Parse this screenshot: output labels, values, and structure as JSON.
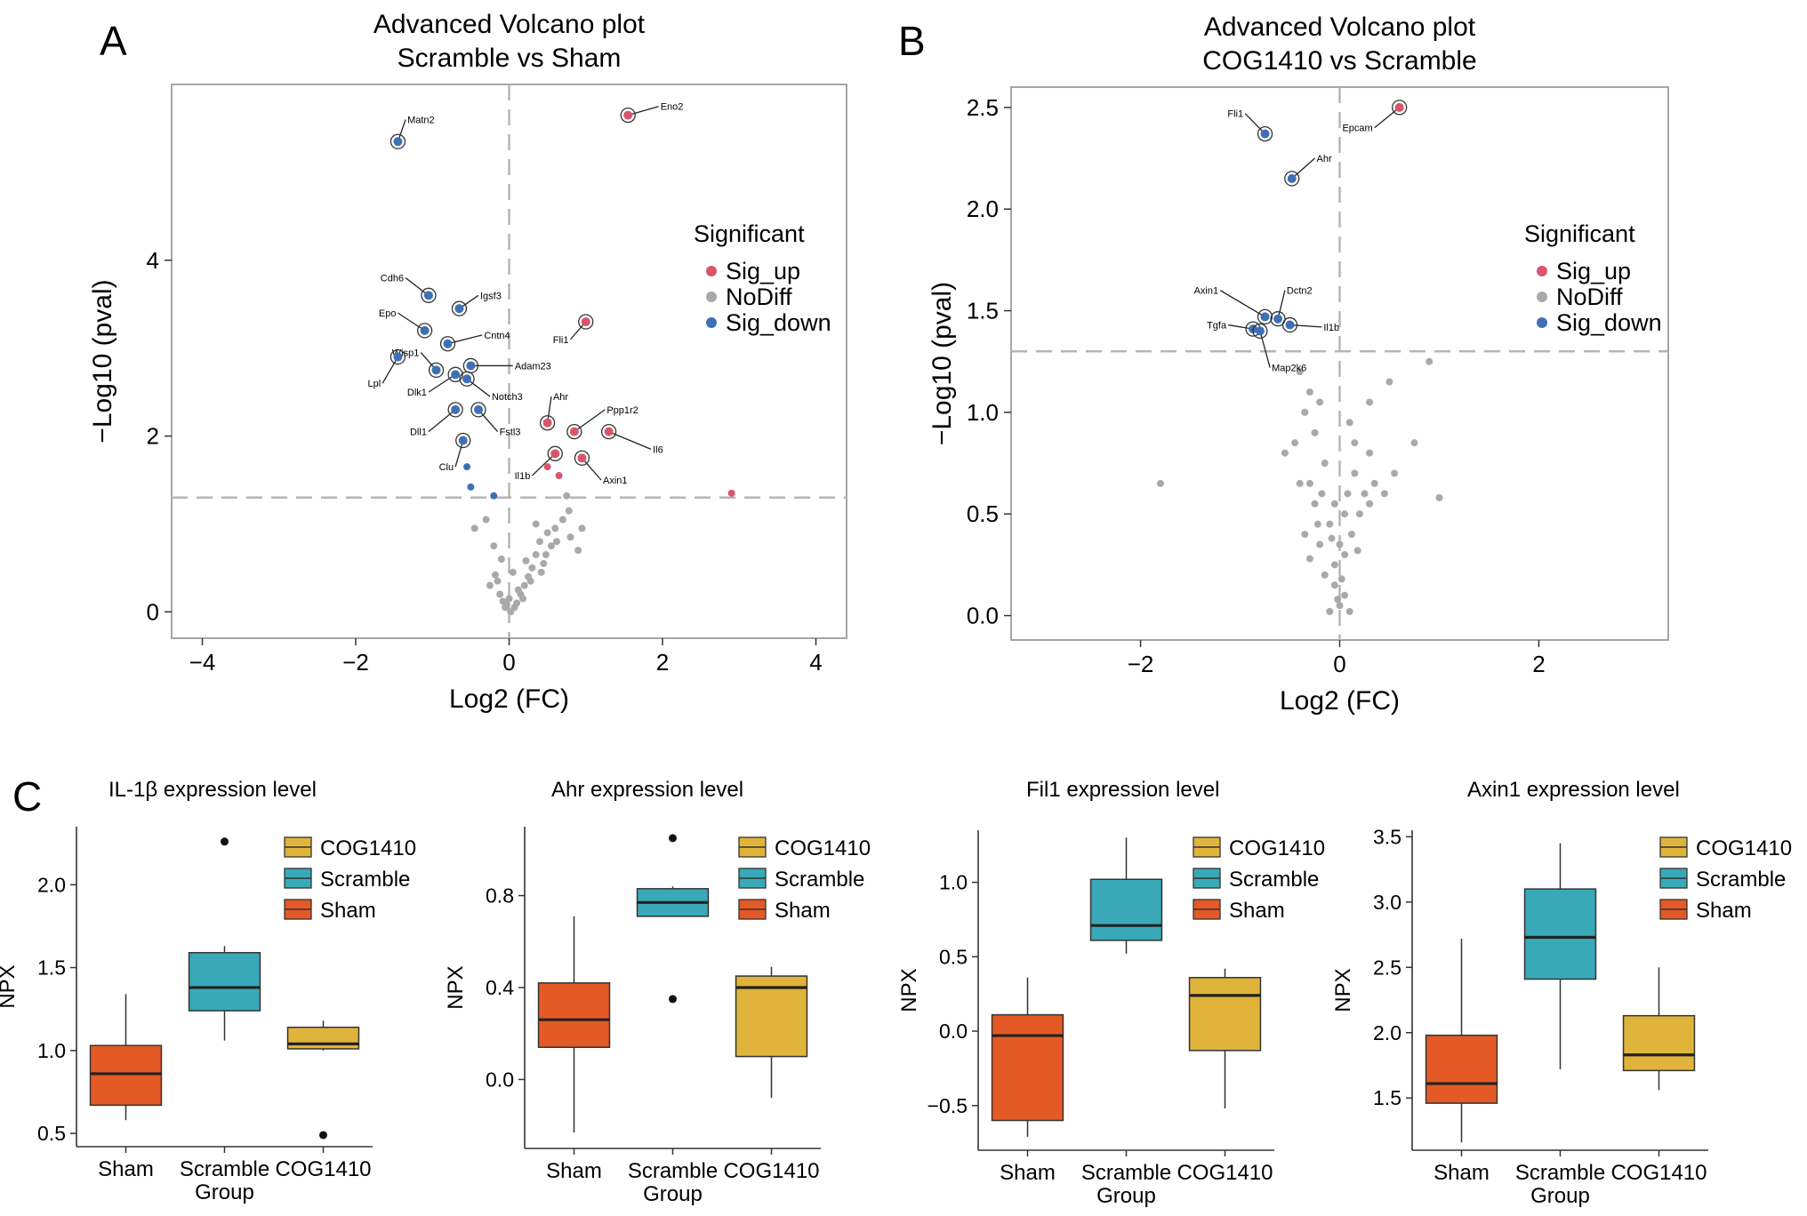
{
  "panel_letters": [
    "A",
    "B",
    "C"
  ],
  "colors": {
    "sig_up": "#d9556b",
    "nodiff": "#a9a9a9",
    "sig_down": "#3f6fb5",
    "sham": "#e35a26",
    "scramble": "#3aa9b7",
    "cog": "#e0b43a",
    "axis": "#333333",
    "frame": "#888888",
    "dash": "#b5b5b5"
  },
  "legend_volcano": {
    "title": "Significant",
    "items": [
      {
        "label": "Sig_up",
        "color": "#d9556b"
      },
      {
        "label": "NoDiff",
        "color": "#a9a9a9"
      },
      {
        "label": "Sig_down",
        "color": "#3f6fb5"
      }
    ]
  },
  "legend_box": [
    {
      "label": "COG1410",
      "color": "#e0b43a"
    },
    {
      "label": "Scramble",
      "color": "#3aa9b7"
    },
    {
      "label": "Sham",
      "color": "#e35a26"
    }
  ],
  "chart_data": [
    {
      "type": "scatter",
      "panel": "A",
      "title": "Advanced Volcano plot",
      "subtitle": "Scramble vs Sham",
      "xlabel": "Log2 (FC)",
      "ylabel": "−Log10 (pval)",
      "xlim": [
        -4.4,
        4.4
      ],
      "ylim": [
        -0.3,
        6.0
      ],
      "xticks": [
        -4,
        -2,
        0,
        2,
        4
      ],
      "xtick_labels": [
        "−4",
        "−2",
        "0",
        "2",
        "4"
      ],
      "yticks": [
        0,
        2,
        4
      ],
      "ytick_labels": [
        "0",
        "2",
        "4"
      ],
      "threshold_y": 1.3,
      "labeled": [
        {
          "label": "Eno2",
          "x": 1.55,
          "y": 5.65,
          "sig": "up",
          "lx": 1.95,
          "ly": 5.75
        },
        {
          "label": "Matn2",
          "x": -1.45,
          "y": 5.35,
          "sig": "down",
          "lx": -1.35,
          "ly": 5.6
        },
        {
          "label": "Cdh6",
          "x": -1.05,
          "y": 3.6,
          "sig": "down",
          "lx": -1.35,
          "ly": 3.8
        },
        {
          "label": "Igsf3",
          "x": -0.65,
          "y": 3.45,
          "sig": "down",
          "lx": -0.4,
          "ly": 3.6
        },
        {
          "label": "Epo",
          "x": -1.1,
          "y": 3.2,
          "sig": "down",
          "lx": -1.45,
          "ly": 3.4
        },
        {
          "label": "Cntn4",
          "x": -0.8,
          "y": 3.05,
          "sig": "down",
          "lx": -0.35,
          "ly": 3.15
        },
        {
          "label": "Fli1",
          "x": 1.0,
          "y": 3.3,
          "sig": "up",
          "lx": 0.8,
          "ly": 3.1
        },
        {
          "label": "Wisp1",
          "x": -0.95,
          "y": 2.75,
          "sig": "down",
          "lx": -1.15,
          "ly": 2.95
        },
        {
          "label": "Lpl",
          "x": -1.45,
          "y": 2.9,
          "sig": "down",
          "lx": -1.65,
          "ly": 2.6
        },
        {
          "label": "Adam23",
          "x": -0.5,
          "y": 2.8,
          "sig": "down",
          "lx": 0.05,
          "ly": 2.8
        },
        {
          "label": "Dlk1",
          "x": -0.7,
          "y": 2.7,
          "sig": "down",
          "lx": -1.05,
          "ly": 2.5
        },
        {
          "label": "Notch3",
          "x": -0.55,
          "y": 2.65,
          "sig": "down",
          "lx": -0.25,
          "ly": 2.45
        },
        {
          "label": "Dll1",
          "x": -0.7,
          "y": 2.3,
          "sig": "down",
          "lx": -1.05,
          "ly": 2.05
        },
        {
          "label": "Fstl3",
          "x": -0.4,
          "y": 2.3,
          "sig": "down",
          "lx": -0.15,
          "ly": 2.05
        },
        {
          "label": "Ahr",
          "x": 0.5,
          "y": 2.15,
          "sig": "up",
          "lx": 0.55,
          "ly": 2.45
        },
        {
          "label": "Ppp1r2",
          "x": 0.85,
          "y": 2.05,
          "sig": "up",
          "lx": 1.25,
          "ly": 2.3
        },
        {
          "label": "Il6",
          "x": 1.3,
          "y": 2.05,
          "sig": "up",
          "lx": 1.85,
          "ly": 1.85
        },
        {
          "label": "Clu",
          "x": -0.6,
          "y": 1.95,
          "sig": "down",
          "lx": -0.7,
          "ly": 1.65
        },
        {
          "label": "Il1b",
          "x": 0.6,
          "y": 1.8,
          "sig": "up",
          "lx": 0.3,
          "ly": 1.55
        },
        {
          "label": "Axin1",
          "x": 0.95,
          "y": 1.75,
          "sig": "up",
          "lx": 1.2,
          "ly": 1.5
        }
      ],
      "points_up": [
        [
          0.5,
          1.65
        ],
        [
          0.65,
          1.55
        ],
        [
          2.9,
          1.35
        ]
      ],
      "points_down": [
        [
          -0.55,
          1.65
        ],
        [
          -0.5,
          1.42
        ],
        [
          -0.2,
          1.32
        ]
      ],
      "points_nodiff": [
        [
          0.75,
          1.32
        ],
        [
          -0.3,
          1.05
        ],
        [
          -0.45,
          0.95
        ],
        [
          -0.2,
          0.75
        ],
        [
          -0.1,
          0.6
        ],
        [
          0.05,
          0.45
        ],
        [
          -0.15,
          0.35
        ],
        [
          0.0,
          0.15
        ],
        [
          0.1,
          0.1
        ],
        [
          -0.05,
          0.05
        ],
        [
          -0.12,
          0.2
        ],
        [
          0.12,
          0.25
        ],
        [
          0.2,
          0.3
        ],
        [
          0.3,
          0.5
        ],
        [
          0.35,
          0.65
        ],
        [
          0.4,
          0.8
        ],
        [
          0.5,
          0.9
        ],
        [
          0.6,
          0.95
        ],
        [
          0.7,
          1.05
        ],
        [
          0.55,
          0.75
        ],
        [
          0.45,
          0.55
        ],
        [
          0.25,
          0.4
        ],
        [
          0.15,
          0.2
        ],
        [
          0.8,
          0.85
        ],
        [
          0.9,
          0.7
        ],
        [
          0.35,
          1.0
        ],
        [
          -0.25,
          0.3
        ],
        [
          -0.08,
          0.12
        ],
        [
          0.02,
          0.0
        ],
        [
          -0.03,
          0.08
        ],
        [
          0.07,
          0.05
        ],
        [
          0.18,
          0.15
        ],
        [
          0.28,
          0.35
        ],
        [
          0.48,
          0.65
        ],
        [
          0.62,
          0.8
        ],
        [
          0.42,
          0.45
        ],
        [
          -0.18,
          0.42
        ],
        [
          0.22,
          0.58
        ],
        [
          0.78,
          1.15
        ],
        [
          0.95,
          0.95
        ]
      ]
    },
    {
      "type": "scatter",
      "panel": "B",
      "title": "Advanced Volcano plot",
      "subtitle": "COG1410 vs Scramble",
      "xlabel": "Log2 (FC)",
      "ylabel": "−Log10 (pval)",
      "xlim": [
        -3.3,
        3.3
      ],
      "ylim": [
        -0.12,
        2.6
      ],
      "xticks": [
        -2,
        0,
        2
      ],
      "xtick_labels": [
        "−2",
        "0",
        "2"
      ],
      "yticks": [
        0.0,
        0.5,
        1.0,
        1.5,
        2.0,
        2.5
      ],
      "ytick_labels": [
        "0.0",
        "0.5",
        "1.0",
        "1.5",
        "2.0",
        "2.5"
      ],
      "threshold_y": 1.3,
      "labeled": [
        {
          "label": "Epcam",
          "x": 0.6,
          "y": 2.5,
          "sig": "up",
          "lx": 0.35,
          "ly": 2.4
        },
        {
          "label": "Fli1",
          "x": -0.75,
          "y": 2.37,
          "sig": "down",
          "lx": -0.95,
          "ly": 2.47
        },
        {
          "label": "Ahr",
          "x": -0.48,
          "y": 2.15,
          "sig": "down",
          "lx": -0.25,
          "ly": 2.25
        },
        {
          "label": "Axin1",
          "x": -0.75,
          "y": 1.47,
          "sig": "down",
          "lx": -1.2,
          "ly": 1.6
        },
        {
          "label": "Dctn2",
          "x": -0.62,
          "y": 1.46,
          "sig": "down",
          "lx": -0.55,
          "ly": 1.6
        },
        {
          "label": "Il1b",
          "x": -0.5,
          "y": 1.43,
          "sig": "down",
          "lx": -0.18,
          "ly": 1.42
        },
        {
          "label": "Tgfa",
          "x": -0.87,
          "y": 1.41,
          "sig": "down",
          "lx": -1.12,
          "ly": 1.43
        },
        {
          "label": "Map2k6",
          "x": -0.8,
          "y": 1.4,
          "sig": "down",
          "lx": -0.7,
          "ly": 1.22
        }
      ],
      "points_up": [],
      "points_down": [],
      "points_nodiff": [
        [
          -1.8,
          0.65
        ],
        [
          0.9,
          1.25
        ],
        [
          0.75,
          0.85
        ],
        [
          1.0,
          0.58
        ],
        [
          0.5,
          1.15
        ],
        [
          0.3,
          1.05
        ],
        [
          -0.4,
          1.2
        ],
        [
          -0.3,
          1.1
        ],
        [
          -0.35,
          1.0
        ],
        [
          -0.2,
          1.05
        ],
        [
          -0.55,
          0.8
        ],
        [
          -0.45,
          0.85
        ],
        [
          -0.25,
          0.9
        ],
        [
          0.1,
          0.95
        ],
        [
          0.3,
          0.8
        ],
        [
          0.15,
          0.7
        ],
        [
          0.35,
          0.65
        ],
        [
          0.45,
          0.6
        ],
        [
          -0.15,
          0.75
        ],
        [
          -0.05,
          0.55
        ],
        [
          0.05,
          0.5
        ],
        [
          -0.3,
          0.65
        ],
        [
          -0.25,
          0.55
        ],
        [
          -0.1,
          0.45
        ],
        [
          0.0,
          0.35
        ],
        [
          0.05,
          0.3
        ],
        [
          -0.05,
          0.25
        ],
        [
          -0.2,
          0.35
        ],
        [
          -0.3,
          0.28
        ],
        [
          -0.15,
          0.2
        ],
        [
          -0.05,
          0.15
        ],
        [
          0.05,
          0.1
        ],
        [
          0.0,
          0.05
        ],
        [
          -0.1,
          0.02
        ],
        [
          0.1,
          0.02
        ],
        [
          -0.02,
          0.08
        ],
        [
          0.02,
          0.18
        ],
        [
          0.12,
          0.4
        ],
        [
          0.2,
          0.5
        ],
        [
          0.25,
          0.6
        ],
        [
          -0.22,
          0.45
        ],
        [
          -0.18,
          0.6
        ],
        [
          0.15,
          0.85
        ],
        [
          0.55,
          0.7
        ],
        [
          0.3,
          0.55
        ],
        [
          -0.4,
          0.65
        ],
        [
          -0.35,
          0.4
        ],
        [
          0.18,
          0.32
        ],
        [
          -0.08,
          0.38
        ],
        [
          0.08,
          0.6
        ]
      ]
    },
    {
      "type": "box",
      "panel": "C",
      "title": "IL-1β expression level",
      "xlabel": "Group",
      "ylabel": "NPX",
      "categories": [
        "Sham",
        "Scramble",
        "COG1410"
      ],
      "ylim": [
        0.42,
        2.35
      ],
      "yticks": [
        0.5,
        1.0,
        1.5,
        2.0
      ],
      "ytick_labels": [
        "0.5",
        "1.0",
        "1.5",
        "2.0"
      ],
      "boxes": [
        {
          "group": "Sham",
          "min": 0.58,
          "q1": 0.67,
          "median": 0.86,
          "q3": 1.03,
          "max": 1.34,
          "outliers": []
        },
        {
          "group": "Scramble",
          "min": 1.06,
          "q1": 1.24,
          "median": 1.38,
          "q3": 1.59,
          "max": 1.63,
          "outliers": [
            2.26
          ]
        },
        {
          "group": "COG1410",
          "min": 1.0,
          "q1": 1.01,
          "median": 1.04,
          "q3": 1.14,
          "max": 1.18,
          "outliers": [
            0.49
          ]
        }
      ]
    },
    {
      "type": "box",
      "panel": "C",
      "title": "Ahr expression level",
      "xlabel": "Group",
      "ylabel": "NPX",
      "categories": [
        "Sham",
        "Scramble",
        "COG1410"
      ],
      "ylim": [
        -0.3,
        1.1
      ],
      "yticks": [
        0.0,
        0.4,
        0.8
      ],
      "ytick_labels": [
        "0.0",
        "0.4",
        "0.8"
      ],
      "boxes": [
        {
          "group": "Sham",
          "min": -0.23,
          "q1": 0.14,
          "median": 0.26,
          "q3": 0.42,
          "max": 0.71,
          "outliers": []
        },
        {
          "group": "Scramble",
          "min": 0.71,
          "q1": 0.71,
          "median": 0.77,
          "q3": 0.83,
          "max": 0.84,
          "outliers": [
            1.05,
            0.35
          ]
        },
        {
          "group": "COG1410",
          "min": -0.08,
          "q1": 0.1,
          "median": 0.4,
          "q3": 0.45,
          "max": 0.49,
          "outliers": []
        }
      ]
    },
    {
      "type": "box",
      "panel": "C",
      "title": "Fil1 expression level",
      "xlabel": "Group",
      "ylabel": "NPX",
      "categories": [
        "Sham",
        "Scramble",
        "COG1410"
      ],
      "ylim": [
        -0.8,
        1.35
      ],
      "yticks": [
        -0.5,
        0.0,
        0.5,
        1.0
      ],
      "ytick_labels": [
        "−0.5",
        "0.0",
        "0.5",
        "1.0"
      ],
      "boxes": [
        {
          "group": "Sham",
          "min": -0.71,
          "q1": -0.6,
          "median": -0.03,
          "q3": 0.11,
          "max": 0.36,
          "outliers": []
        },
        {
          "group": "Scramble",
          "min": 0.52,
          "q1": 0.61,
          "median": 0.71,
          "q3": 1.02,
          "max": 1.3,
          "outliers": []
        },
        {
          "group": "COG1410",
          "min": -0.52,
          "q1": -0.13,
          "median": 0.24,
          "q3": 0.36,
          "max": 0.42,
          "outliers": []
        }
      ]
    },
    {
      "type": "box",
      "panel": "C",
      "title": "Axin1 expression level",
      "xlabel": "Group",
      "ylabel": "NPX",
      "categories": [
        "Sham",
        "Scramble",
        "COG1410"
      ],
      "ylim": [
        1.1,
        3.55
      ],
      "yticks": [
        1.5,
        2.0,
        2.5,
        3.0,
        3.5
      ],
      "ytick_labels": [
        "1.5",
        "2.0",
        "2.5",
        "3.0",
        "3.5"
      ],
      "boxes": [
        {
          "group": "Sham",
          "min": 1.16,
          "q1": 1.46,
          "median": 1.61,
          "q3": 1.98,
          "max": 2.72,
          "outliers": []
        },
        {
          "group": "Scramble",
          "min": 1.72,
          "q1": 2.41,
          "median": 2.73,
          "q3": 3.1,
          "max": 3.45,
          "outliers": []
        },
        {
          "group": "COG1410",
          "min": 1.56,
          "q1": 1.71,
          "median": 1.83,
          "q3": 2.13,
          "max": 2.5,
          "outliers": []
        }
      ]
    }
  ]
}
